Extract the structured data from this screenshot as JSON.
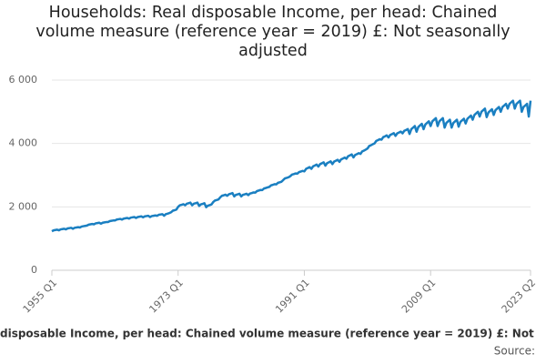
{
  "chart_data": {
    "type": "line",
    "title": "Households: Real disposable Income, per head: Chained volume measure (reference year = 2019) £: Not seasonally adjusted",
    "footer": "disposable Income, per head: Chained volume measure (reference year = 2019) £: Not",
    "source": "Source:",
    "color": "#1a7fc1",
    "grid": true,
    "ylim": [
      0,
      6000
    ],
    "yticks": [
      0,
      {
        "value": 2000,
        "label": "2 000"
      },
      {
        "value": 4000,
        "label": "4 000"
      },
      {
        "value": 6000,
        "label": "6 000"
      }
    ],
    "categories": [
      "1955 Q1",
      null,
      null,
      null,
      null,
      null,
      null,
      null,
      null,
      null,
      null,
      null,
      null,
      null,
      null,
      null,
      null,
      null,
      null,
      null,
      null,
      null,
      null,
      null,
      null,
      null,
      null,
      null,
      null,
      null,
      null,
      null,
      null,
      null,
      null,
      null,
      null,
      null,
      null,
      null,
      null,
      null,
      null,
      null,
      null,
      null,
      null,
      null,
      null,
      null,
      null,
      null,
      null,
      null,
      null,
      null,
      null,
      null,
      null,
      null,
      null,
      null,
      null,
      null,
      null,
      null,
      null,
      null,
      null,
      null,
      null,
      null,
      "1973 Q1",
      null,
      null,
      null,
      null,
      null,
      null,
      null,
      null,
      null,
      null,
      null,
      null,
      null,
      null,
      null,
      null,
      null,
      null,
      null,
      null,
      null,
      null,
      null,
      null,
      null,
      null,
      null,
      null,
      null,
      null,
      null,
      null,
      null,
      null,
      null,
      null,
      null,
      null,
      null,
      null,
      null,
      null,
      null,
      null,
      null,
      null,
      null,
      null,
      null,
      null,
      null,
      null,
      null,
      null,
      null,
      null,
      null,
      null,
      null,
      null,
      null,
      null,
      null,
      null,
      null,
      null,
      null,
      null,
      null,
      null,
      null,
      "1991 Q1",
      null,
      null,
      null,
      null,
      null,
      null,
      null,
      null,
      null,
      null,
      null,
      null,
      null,
      null,
      null,
      null,
      null,
      null,
      null,
      null,
      null,
      null,
      null,
      null,
      null,
      null,
      null,
      null,
      null,
      null,
      null,
      null,
      null,
      null,
      null,
      null,
      null,
      null,
      null,
      null,
      null,
      null,
      null,
      null,
      null,
      null,
      null,
      null,
      null,
      null,
      null,
      null,
      null,
      null,
      null,
      null,
      null,
      null,
      null,
      null,
      null,
      null,
      null,
      null,
      null,
      null,
      null,
      null,
      null,
      null,
      null,
      "2009 Q1",
      null,
      null,
      null,
      null,
      null,
      null,
      null,
      null,
      null,
      null,
      null,
      null,
      null,
      null,
      null,
      null,
      null,
      null,
      null,
      null,
      null,
      null,
      null,
      null,
      null,
      null,
      null,
      null,
      null,
      null,
      null,
      null,
      null,
      null,
      null,
      null,
      null,
      null,
      null,
      null,
      null,
      null,
      null,
      null,
      null,
      null,
      null,
      null,
      null,
      null,
      null,
      null,
      null,
      null,
      null,
      null,
      "2023 Q2"
    ],
    "values": [
      1230,
      1260,
      1270,
      1280,
      1260,
      1290,
      1300,
      1310,
      1290,
      1320,
      1330,
      1340,
      1310,
      1340,
      1350,
      1360,
      1350,
      1380,
      1390,
      1400,
      1410,
      1440,
      1450,
      1460,
      1450,
      1480,
      1490,
      1500,
      1470,
      1500,
      1510,
      1520,
      1520,
      1550,
      1560,
      1570,
      1570,
      1600,
      1610,
      1620,
      1600,
      1630,
      1640,
      1650,
      1630,
      1660,
      1670,
      1680,
      1650,
      1680,
      1690,
      1700,
      1670,
      1700,
      1710,
      1720,
      1680,
      1710,
      1720,
      1730,
      1720,
      1750,
      1760,
      1770,
      1720,
      1770,
      1785,
      1805,
      1830,
      1880,
      1895,
      1915,
      2000,
      2050,
      2065,
      2085,
      2050,
      2100,
      2115,
      2135,
      2050,
      2100,
      2115,
      2135,
      2030,
      2080,
      2095,
      2115,
      1990,
      2040,
      2055,
      2075,
      2150,
      2200,
      2215,
      2235,
      2300,
      2350,
      2365,
      2385,
      2350,
      2400,
      2415,
      2435,
      2330,
      2380,
      2395,
      2415,
      2330,
      2380,
      2395,
      2415,
      2370,
      2420,
      2435,
      2455,
      2450,
      2500,
      2515,
      2535,
      2530,
      2580,
      2595,
      2615,
      2630,
      2680,
      2695,
      2715,
      2710,
      2760,
      2775,
      2795,
      2850,
      2900,
      2915,
      2935,
      2970,
      3020,
      3035,
      3055,
      3050,
      3100,
      3115,
      3135,
      3120,
      3200,
      3225,
      3255,
      3200,
      3280,
      3305,
      3335,
      3270,
      3350,
      3375,
      3405,
      3300,
      3380,
      3405,
      3435,
      3350,
      3430,
      3455,
      3485,
      3420,
      3500,
      3525,
      3555,
      3520,
      3600,
      3625,
      3655,
      3560,
      3640,
      3665,
      3695,
      3670,
      3750,
      3775,
      3805,
      3840,
      3920,
      3945,
      3975,
      4000,
      4080,
      4105,
      4135,
      4120,
      4200,
      4225,
      4255,
      4190,
      4270,
      4295,
      4325,
      4240,
      4320,
      4345,
      4375,
      4320,
      4400,
      4425,
      4455,
      4300,
      4450,
      4500,
      4550,
      4370,
      4520,
      4570,
      4620,
      4450,
      4600,
      4650,
      4700,
      4550,
      4700,
      4750,
      4800,
      4550,
      4700,
      4750,
      4800,
      4500,
      4650,
      4700,
      4750,
      4500,
      4650,
      4700,
      4750,
      4530,
      4680,
      4730,
      4780,
      4630,
      4780,
      4830,
      4880,
      4750,
      4900,
      4950,
      5000,
      4850,
      5000,
      5050,
      5100,
      4830,
      4980,
      5030,
      5080,
      4900,
      5050,
      5100,
      5150,
      5000,
      5150,
      5200,
      5250,
      5100,
      5250,
      5300,
      5350,
      5100,
      5250,
      5300,
      5350,
      5000,
      5150,
      5200,
      5250,
      4850,
      5350
    ]
  }
}
